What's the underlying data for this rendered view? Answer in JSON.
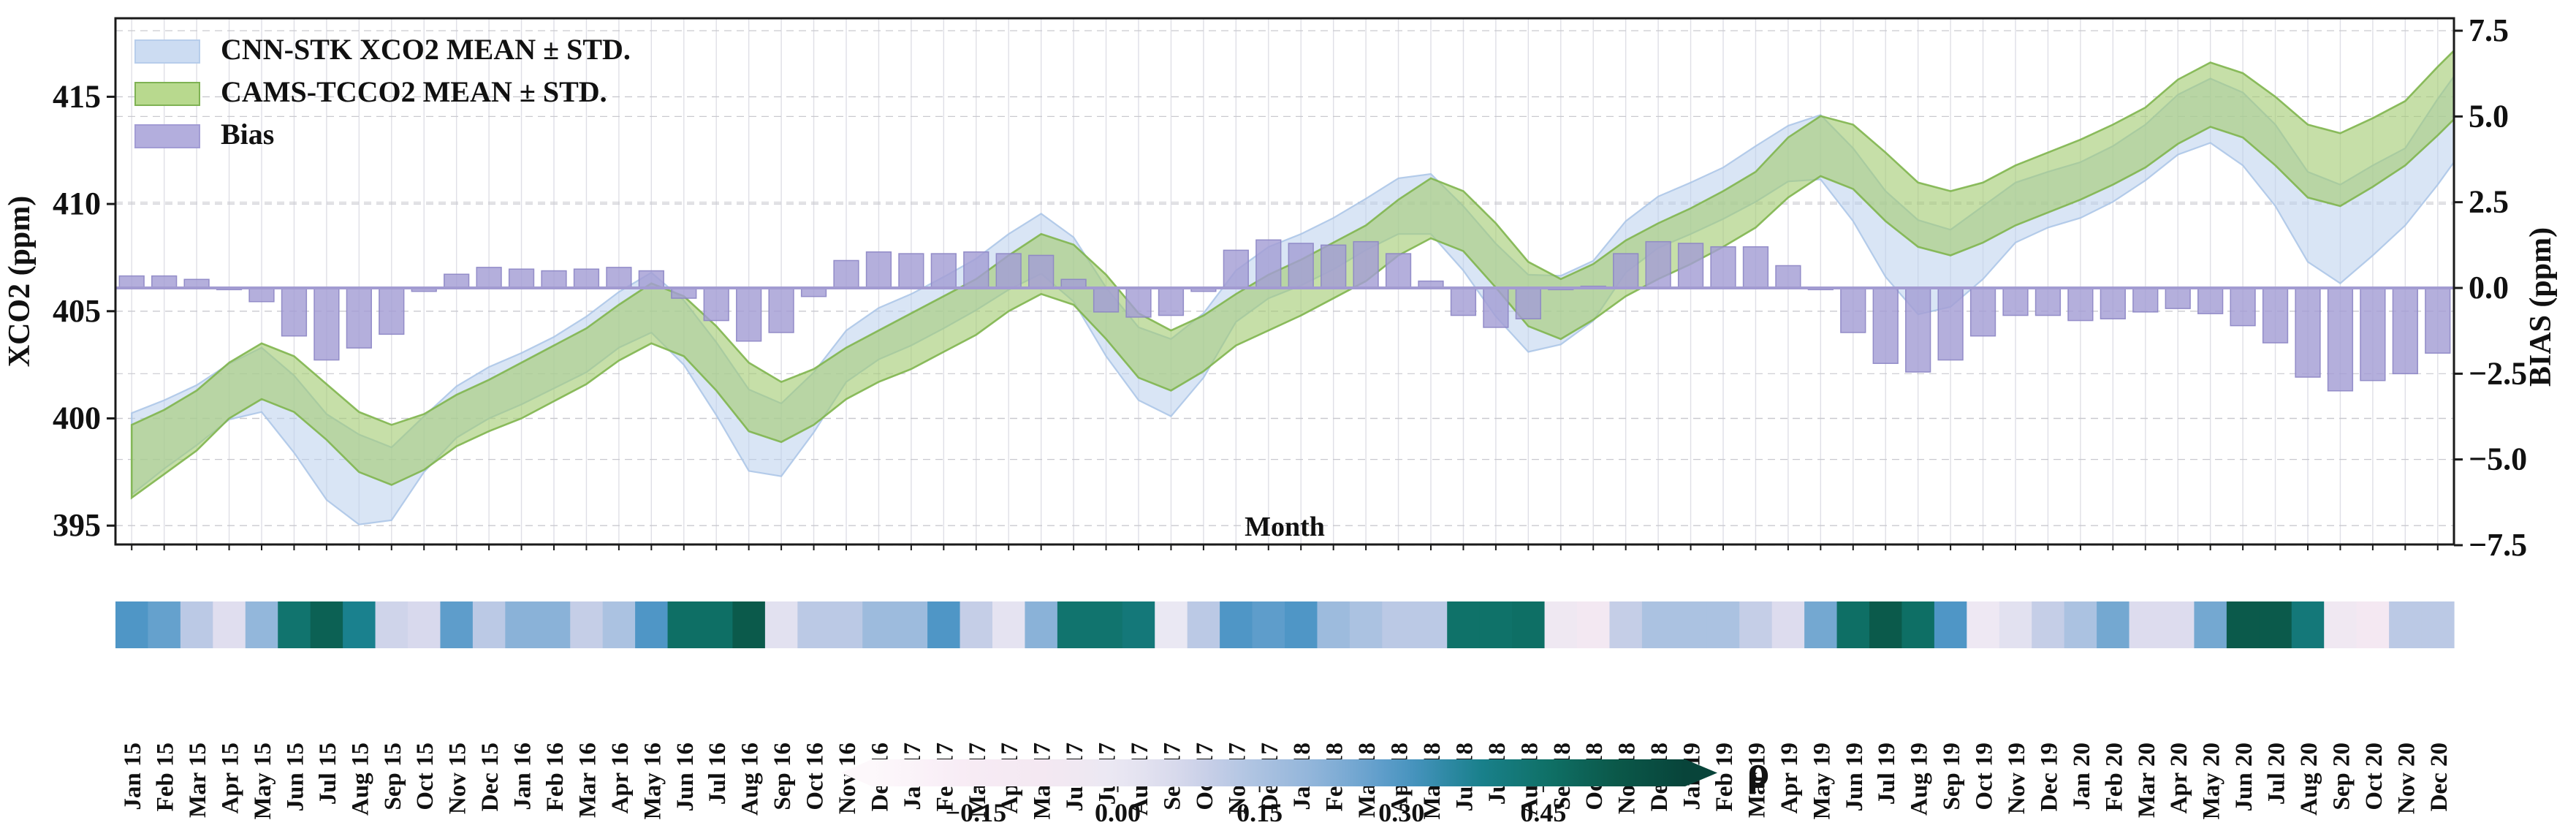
{
  "figure": {
    "left_axis_label": "XCO2 (ppm)",
    "right_axis_label": "BIAS (ppm)",
    "x_axis_label": "Month",
    "colorbar_label": "ρ"
  },
  "legend": {
    "items": [
      {
        "label": "CNN-STK XCO2 MEAN ± STD.",
        "color": "#ccdcf2",
        "edge": "#b7cdeb"
      },
      {
        "label": "CAMS-TCCO2 MEAN ± STD.",
        "color": "#b8d98e",
        "edge": "#7fb254"
      },
      {
        "label": "Bias",
        "color": "#b3aedd",
        "edge": "#a29cd4"
      }
    ]
  },
  "axes": {
    "left": {
      "ticks": [
        395,
        400,
        405,
        410,
        415
      ]
    },
    "right": {
      "ticks": [
        7.5,
        5.0,
        2.5,
        0.0,
        -2.5,
        -5.0,
        -7.5
      ]
    },
    "colorbar": {
      "ticks": [
        -0.15,
        0.0,
        0.15,
        0.3,
        0.45
      ],
      "range": [
        -0.26,
        0.6
      ]
    }
  },
  "chart_data": {
    "type": "combo: two mean±std area bands (left axis) + monthly bias bars (right axis) + monthly correlation heatmap strip with colorbar",
    "x_axis": "months Jan 2015 - Dec 2020",
    "ylim_left": [
      394.1,
      418.65
    ],
    "ylim_right": [
      -7.5,
      7.5
    ],
    "grid": true,
    "legend_position": "upper left",
    "months": [
      "Jan 15",
      "Feb 15",
      "Mar 15",
      "Apr 15",
      "May 15",
      "Jun 15",
      "Jul 15",
      "Aug 15",
      "Sep 15",
      "Oct 15",
      "Nov 15",
      "Dec 15",
      "Jan 16",
      "Feb 16",
      "Mar 16",
      "Apr 16",
      "May 16",
      "Jun 16",
      "Jul 16",
      "Aug 16",
      "Sep 16",
      "Oct 16",
      "Nov 16",
      "Dec 16",
      "Jan 17",
      "Feb 17",
      "Mar 17",
      "Apr 17",
      "May 17",
      "Jun 17",
      "Jul 17",
      "Aug 17",
      "Sep 17",
      "Oct 17",
      "Nov 17",
      "Dec 17",
      "Jan 18",
      "Feb 18",
      "Mar 18",
      "Apr 18",
      "May 18",
      "Jun 18",
      "Jul 18",
      "Aug 18",
      "Sep 18",
      "Oct 18",
      "Nov 18",
      "Dec 18",
      "Jan 19",
      "Feb 19",
      "Mar 19",
      "Apr 19",
      "May 19",
      "Jun 19",
      "Jul 19",
      "Aug 19",
      "Sep 19",
      "Oct 19",
      "Nov 19",
      "Dec 19",
      "Jan 20",
      "Feb 20",
      "Mar 20",
      "Apr 20",
      "May 20",
      "Jun 20",
      "Jul 20",
      "Aug 20",
      "Sep 20",
      "Oct 20",
      "Nov 20",
      "Dec 20"
    ],
    "series": [
      {
        "name": "CNN-STK XCO2 MEAN ± STD.",
        "axis": "left",
        "mean": [
          398.35,
          399.25,
          400.15,
          401.25,
          401.8,
          400.2,
          398.2,
          397.15,
          396.95,
          398.8,
          400.3,
          401.2,
          401.85,
          402.6,
          403.45,
          404.6,
          405.4,
          404.0,
          401.85,
          399.45,
          399.0,
          400.75,
          402.9,
          403.95,
          404.6,
          405.4,
          406.25,
          407.3,
          408.15,
          406.95,
          404.5,
          402.55,
          401.9,
          403.4,
          405.7,
          406.8,
          407.4,
          408.15,
          409.05,
          409.9,
          410.0,
          408.4,
          406.45,
          404.9,
          405.05,
          405.95,
          408.0,
          409.15,
          409.8,
          410.5,
          411.4,
          412.35,
          412.65,
          410.9,
          408.6,
          407.05,
          407.0,
          408.2,
          409.6,
          410.2,
          410.65,
          411.4,
          412.4,
          413.7,
          414.35,
          413.5,
          411.8,
          409.4,
          408.6,
          409.7,
          410.8,
          412.9
        ],
        "std": [
          1.9,
          1.6,
          1.4,
          1.3,
          1.5,
          1.8,
          2.0,
          2.1,
          1.7,
          1.3,
          1.2,
          1.2,
          1.2,
          1.2,
          1.3,
          1.3,
          1.4,
          1.5,
          1.7,
          1.9,
          1.7,
          1.4,
          1.2,
          1.2,
          1.2,
          1.2,
          1.2,
          1.3,
          1.4,
          1.5,
          1.6,
          1.7,
          1.8,
          1.5,
          1.2,
          1.2,
          1.2,
          1.2,
          1.2,
          1.3,
          1.4,
          1.5,
          1.7,
          1.8,
          1.6,
          1.4,
          1.2,
          1.2,
          1.2,
          1.2,
          1.3,
          1.3,
          1.5,
          1.7,
          2.0,
          2.2,
          1.8,
          1.7,
          1.4,
          1.3,
          1.3,
          1.3,
          1.3,
          1.4,
          1.5,
          1.7,
          1.9,
          2.1,
          2.3,
          2.1,
          1.8,
          2.0
        ]
      },
      {
        "name": "CAMS-TCCO2 MEAN ± STD.",
        "axis": "left",
        "mean": [
          398.0,
          398.9,
          399.9,
          401.3,
          402.2,
          401.6,
          400.3,
          398.9,
          398.3,
          398.9,
          399.9,
          400.6,
          401.3,
          402.1,
          402.9,
          404.0,
          404.9,
          404.3,
          402.8,
          401.0,
          400.3,
          401.0,
          402.1,
          402.9,
          403.6,
          404.4,
          405.2,
          406.3,
          407.2,
          406.7,
          405.2,
          403.4,
          402.7,
          403.5,
          404.6,
          405.4,
          406.1,
          406.9,
          407.7,
          408.9,
          409.8,
          409.2,
          407.6,
          405.8,
          405.1,
          405.9,
          407.0,
          407.8,
          408.5,
          409.3,
          410.2,
          411.7,
          412.7,
          412.2,
          410.8,
          409.5,
          409.1,
          409.6,
          410.4,
          411.0,
          411.6,
          412.3,
          413.1,
          414.3,
          415.1,
          414.6,
          413.4,
          412.0,
          411.6,
          412.4,
          413.3,
          414.8
        ],
        "std": [
          1.7,
          1.5,
          1.4,
          1.3,
          1.3,
          1.3,
          1.3,
          1.4,
          1.4,
          1.3,
          1.2,
          1.2,
          1.3,
          1.3,
          1.3,
          1.3,
          1.4,
          1.4,
          1.5,
          1.6,
          1.4,
          1.3,
          1.2,
          1.2,
          1.3,
          1.3,
          1.3,
          1.3,
          1.4,
          1.4,
          1.5,
          1.5,
          1.4,
          1.3,
          1.2,
          1.3,
          1.3,
          1.3,
          1.3,
          1.3,
          1.4,
          1.4,
          1.5,
          1.5,
          1.4,
          1.3,
          1.3,
          1.3,
          1.3,
          1.3,
          1.3,
          1.4,
          1.4,
          1.5,
          1.6,
          1.5,
          1.5,
          1.4,
          1.4,
          1.4,
          1.4,
          1.4,
          1.4,
          1.5,
          1.5,
          1.5,
          1.6,
          1.7,
          1.7,
          1.6,
          1.5,
          1.6
        ]
      },
      {
        "name": "Bias",
        "axis": "right",
        "values": [
          0.35,
          0.35,
          0.25,
          -0.05,
          -0.4,
          -1.4,
          -2.1,
          -1.75,
          -1.35,
          -0.1,
          0.4,
          0.6,
          0.55,
          0.5,
          0.55,
          0.6,
          0.5,
          -0.3,
          -0.95,
          -1.55,
          -1.3,
          -0.25,
          0.8,
          1.05,
          1.0,
          1.0,
          1.05,
          1.0,
          0.95,
          0.25,
          -0.7,
          -0.85,
          -0.8,
          -0.1,
          1.1,
          1.4,
          1.3,
          1.25,
          1.35,
          1.0,
          0.2,
          -0.8,
          -1.15,
          -0.9,
          -0.05,
          0.05,
          1.0,
          1.35,
          1.3,
          1.2,
          1.2,
          0.65,
          -0.05,
          -1.3,
          -2.2,
          -2.45,
          -2.1,
          -1.4,
          -0.8,
          -0.8,
          -0.95,
          -0.9,
          -0.7,
          -0.6,
          -0.75,
          -1.1,
          -1.6,
          -2.6,
          -3.0,
          -2.7,
          -2.5,
          -1.9
        ]
      },
      {
        "name": "ρ (correlation heatmap strip)",
        "axis": "colorbar",
        "values": [
          0.3,
          0.27,
          0.12,
          0.04,
          0.2,
          0.44,
          0.5,
          0.38,
          0.08,
          0.06,
          0.28,
          0.12,
          0.22,
          0.22,
          0.1,
          0.15,
          0.3,
          0.46,
          0.46,
          0.52,
          0.03,
          0.12,
          0.12,
          0.18,
          0.18,
          0.3,
          0.1,
          0.02,
          0.22,
          0.44,
          0.44,
          0.42,
          0.0,
          0.12,
          0.3,
          0.28,
          0.3,
          0.18,
          0.15,
          0.12,
          0.12,
          0.45,
          0.45,
          0.46,
          -0.04,
          -0.07,
          0.1,
          0.15,
          0.15,
          0.15,
          0.1,
          0.05,
          0.25,
          0.46,
          0.52,
          0.46,
          0.3,
          -0.03,
          0.03,
          0.1,
          0.15,
          0.25,
          0.05,
          0.05,
          0.25,
          0.52,
          0.52,
          0.42,
          -0.05,
          -0.08,
          0.12,
          0.12
        ]
      }
    ]
  },
  "colors": {
    "cnn_fill": "#b9cfec",
    "cnn_edge": "#a9c4e6",
    "cams_fill": "#a3cc72",
    "cams_edge": "#7fb54e",
    "bar_fill": "rgba(164,158,212,0.82)",
    "bar_edge": "rgba(140,133,196,0.9)",
    "baseline": "#a29bd1",
    "frame": "#1a1a1a",
    "grid_h": "#c9c9cf",
    "grid_v": "#dfdfe6",
    "colormap_stops": [
      [
        -0.27,
        "#fdf9fc"
      ],
      [
        -0.15,
        "#f7ebf4"
      ],
      [
        -0.07,
        "#f3e8f2"
      ],
      [
        0.0,
        "#eae8f3"
      ],
      [
        0.05,
        "#dddcee"
      ],
      [
        0.1,
        "#c5cee7"
      ],
      [
        0.15,
        "#abc2e1"
      ],
      [
        0.22,
        "#8ab2d8"
      ],
      [
        0.3,
        "#4f96c6"
      ],
      [
        0.38,
        "#1a818e"
      ],
      [
        0.45,
        "#0f7269"
      ],
      [
        0.52,
        "#0b5a4b"
      ],
      [
        0.6,
        "#08443a"
      ],
      [
        0.65,
        "#073d34"
      ]
    ]
  }
}
